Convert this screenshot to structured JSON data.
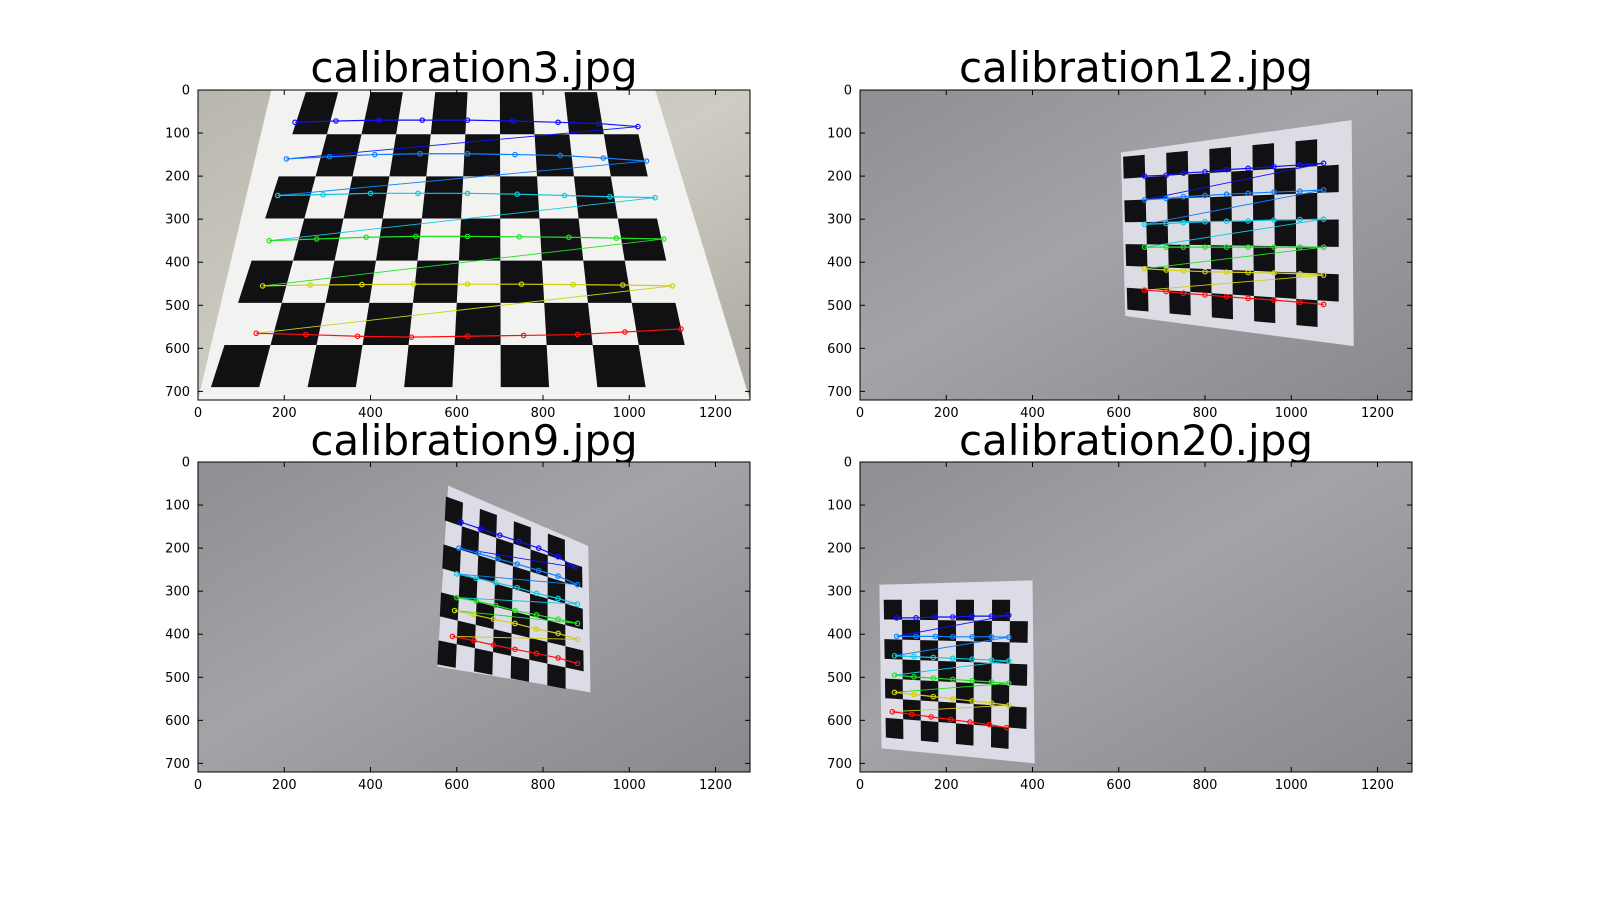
{
  "chart_data": [
    {
      "type": "image",
      "title": "calibration3.jpg",
      "background": "wall-cream",
      "xlim": [
        0,
        1280
      ],
      "ylim": [
        720,
        0
      ],
      "xticks": [
        0,
        200,
        400,
        600,
        800,
        1000,
        1200
      ],
      "yticks": [
        0,
        100,
        200,
        300,
        400,
        500,
        600,
        700
      ],
      "board": {
        "tl": [
          250,
          5
        ],
        "tr": [
          1000,
          5
        ],
        "br": [
          1150,
          690
        ],
        "bl": [
          30,
          690
        ],
        "cols": 10,
        "rows": 7,
        "paper": "#f2f2f0",
        "paper_corners": [
          [
            170,
            0
          ],
          [
            1060,
            0
          ],
          [
            1280,
            720
          ],
          [
            0,
            720
          ]
        ]
      },
      "corners": [
        {
          "color": "#1010ff",
          "points": [
            [
              225,
              75
            ],
            [
              320,
              72
            ],
            [
              420,
              70
            ],
            [
              520,
              70
            ],
            [
              625,
              70
            ],
            [
              730,
              72
            ],
            [
              835,
              75
            ],
            [
              930,
              78
            ],
            [
              1020,
              85
            ]
          ]
        },
        {
          "color": "#1080ff",
          "points": [
            [
              205,
              160
            ],
            [
              305,
              155
            ],
            [
              410,
              150
            ],
            [
              515,
              148
            ],
            [
              625,
              148
            ],
            [
              735,
              150
            ],
            [
              840,
              152
            ],
            [
              940,
              158
            ],
            [
              1040,
              165
            ]
          ]
        },
        {
          "color": "#10c8e0",
          "points": [
            [
              185,
              245
            ],
            [
              290,
              243
            ],
            [
              400,
              240
            ],
            [
              510,
              240
            ],
            [
              625,
              240
            ],
            [
              740,
              242
            ],
            [
              850,
              245
            ],
            [
              955,
              248
            ],
            [
              1060,
              250
            ]
          ]
        },
        {
          "color": "#20e020",
          "points": [
            [
              165,
              350
            ],
            [
              275,
              346
            ],
            [
              390,
              342
            ],
            [
              505,
              340
            ],
            [
              625,
              340
            ],
            [
              745,
              341
            ],
            [
              860,
              342
            ],
            [
              970,
              344
            ],
            [
              1080,
              346
            ]
          ]
        },
        {
          "color": "#d0d010",
          "points": [
            [
              150,
              455
            ],
            [
              260,
              453
            ],
            [
              380,
              452
            ],
            [
              500,
              451
            ],
            [
              625,
              451
            ],
            [
              750,
              451
            ],
            [
              870,
              452
            ],
            [
              985,
              453
            ],
            [
              1100,
              455
            ]
          ]
        },
        {
          "color": "#ff1010",
          "points": [
            [
              135,
              565
            ],
            [
              250,
              568
            ],
            [
              370,
              572
            ],
            [
              495,
              574
            ],
            [
              625,
              572
            ],
            [
              755,
              570
            ],
            [
              880,
              568
            ],
            [
              990,
              562
            ],
            [
              1120,
              555
            ]
          ]
        }
      ]
    },
    {
      "type": "image",
      "title": "calibration12.jpg",
      "background": "wall-grey",
      "xlim": [
        0,
        1280
      ],
      "ylim": [
        720,
        0
      ],
      "xticks": [
        0,
        200,
        400,
        600,
        800,
        1000,
        1200
      ],
      "yticks": [
        0,
        100,
        200,
        300,
        400,
        500,
        600,
        700
      ],
      "board": {
        "tl": [
          610,
          155
        ],
        "tr": [
          1110,
          110
        ],
        "br": [
          1110,
          555
        ],
        "bl": [
          620,
          510
        ],
        "cols": 10,
        "rows": 7,
        "paper": "#dcdce4",
        "paper_corners": [
          [
            605,
            145
          ],
          [
            1140,
            70
          ],
          [
            1145,
            595
          ],
          [
            615,
            525
          ]
        ]
      },
      "corners": [
        {
          "color": "#1010ff",
          "points": [
            [
              660,
              200
            ],
            [
              710,
              198
            ],
            [
              750,
              193
            ],
            [
              800,
              190
            ],
            [
              850,
              185
            ],
            [
              900,
              182
            ],
            [
              960,
              178
            ],
            [
              1020,
              174
            ],
            [
              1075,
              170
            ]
          ]
        },
        {
          "color": "#1080ff",
          "points": [
            [
              660,
              255
            ],
            [
              710,
              252
            ],
            [
              750,
              248
            ],
            [
              800,
              245
            ],
            [
              850,
              242
            ],
            [
              900,
              240
            ],
            [
              960,
              237
            ],
            [
              1020,
              235
            ],
            [
              1075,
              232
            ]
          ]
        },
        {
          "color": "#10c8e0",
          "points": [
            [
              660,
              312
            ],
            [
              710,
              310
            ],
            [
              750,
              308
            ],
            [
              800,
              306
            ],
            [
              850,
              305
            ],
            [
              900,
              304
            ],
            [
              960,
              302
            ],
            [
              1020,
              301
            ],
            [
              1075,
              300
            ]
          ]
        },
        {
          "color": "#20e020",
          "points": [
            [
              660,
              365
            ],
            [
              710,
              365
            ],
            [
              750,
              365
            ],
            [
              800,
              365
            ],
            [
              850,
              365
            ],
            [
              900,
              365
            ],
            [
              960,
              365
            ],
            [
              1020,
              365
            ],
            [
              1075,
              365
            ]
          ]
        },
        {
          "color": "#d0d010",
          "points": [
            [
              660,
              415
            ],
            [
              710,
              418
            ],
            [
              750,
              420
            ],
            [
              800,
              422
            ],
            [
              850,
              423
            ],
            [
              900,
              424
            ],
            [
              960,
              425
            ],
            [
              1020,
              427
            ],
            [
              1075,
              430
            ]
          ]
        },
        {
          "color": "#ff1010",
          "points": [
            [
              660,
              465
            ],
            [
              710,
              468
            ],
            [
              750,
              472
            ],
            [
              800,
              476
            ],
            [
              850,
              480
            ],
            [
              900,
              484
            ],
            [
              960,
              488
            ],
            [
              1020,
              493
            ],
            [
              1075,
              498
            ]
          ]
        }
      ]
    },
    {
      "type": "image",
      "title": "calibration9.jpg",
      "background": "wall-grey",
      "xlim": [
        0,
        1280
      ],
      "ylim": [
        720,
        0
      ],
      "xticks": [
        0,
        200,
        400,
        600,
        800,
        1000,
        1200
      ],
      "yticks": [
        0,
        100,
        200,
        300,
        400,
        500,
        600,
        700
      ],
      "board": {
        "tl": [
          575,
          80
        ],
        "tr": [
          890,
          195
        ],
        "br": [
          895,
          535
        ],
        "bl": [
          555,
          470
        ],
        "cols": 8,
        "rows": 7,
        "paper": "#dcdce6",
        "paper_corners": [
          [
            580,
            55
          ],
          [
            905,
            195
          ],
          [
            910,
            535
          ],
          [
            555,
            475
          ]
        ]
      },
      "corners": [
        {
          "color": "#1010ff",
          "points": [
            [
              610,
              140
            ],
            [
              655,
              155
            ],
            [
              700,
              170
            ],
            [
              745,
              185
            ],
            [
              790,
              200
            ],
            [
              835,
              220
            ],
            [
              875,
              245
            ]
          ]
        },
        {
          "color": "#1080ff",
          "points": [
            [
              605,
              200
            ],
            [
              650,
              212
            ],
            [
              695,
              225
            ],
            [
              740,
              237
            ],
            [
              790,
              252
            ],
            [
              835,
              265
            ],
            [
              880,
              285
            ]
          ]
        },
        {
          "color": "#10c8e0",
          "points": [
            [
              600,
              260
            ],
            [
              645,
              270
            ],
            [
              690,
              280
            ],
            [
              740,
              292
            ],
            [
              785,
              305
            ],
            [
              835,
              317
            ],
            [
              880,
              330
            ]
          ]
        },
        {
          "color": "#20e020",
          "points": [
            [
              600,
              315
            ],
            [
              645,
              323
            ],
            [
              690,
              333
            ],
            [
              735,
              345
            ],
            [
              785,
              355
            ],
            [
              835,
              365
            ],
            [
              880,
              375
            ]
          ]
        },
        {
          "color": "#d0d010",
          "points": [
            [
              595,
              345
            ],
            [
              640,
              355
            ],
            [
              685,
              365
            ],
            [
              735,
              375
            ],
            [
              785,
              388
            ],
            [
              835,
              398
            ],
            [
              880,
              412
            ]
          ]
        },
        {
          "color": "#ff1010",
          "points": [
            [
              590,
              405
            ],
            [
              640,
              415
            ],
            [
              685,
              425
            ],
            [
              735,
              435
            ],
            [
              785,
              445
            ],
            [
              835,
              455
            ],
            [
              880,
              468
            ]
          ]
        }
      ]
    },
    {
      "type": "image",
      "title": "calibration20.jpg",
      "background": "wall-grey",
      "xlim": [
        0,
        1280
      ],
      "ylim": [
        720,
        0
      ],
      "xticks": [
        0,
        200,
        400,
        600,
        800,
        1000,
        1200
      ],
      "yticks": [
        0,
        100,
        200,
        300,
        400,
        500,
        600,
        700
      ],
      "board": {
        "tl": [
          55,
          320
        ],
        "tr": [
          390,
          320
        ],
        "br": [
          385,
          670
        ],
        "bl": [
          60,
          640
        ],
        "cols": 8,
        "rows": 7,
        "paper": "#dcdce6",
        "paper_corners": [
          [
            45,
            285
          ],
          [
            400,
            275
          ],
          [
            405,
            700
          ],
          [
            50,
            665
          ]
        ]
      },
      "corners": [
        {
          "color": "#1010ff",
          "points": [
            [
              85,
              362
            ],
            [
              130,
              362
            ],
            [
              175,
              360
            ],
            [
              215,
              360
            ],
            [
              260,
              358
            ],
            [
              305,
              358
            ],
            [
              345,
              356
            ]
          ]
        },
        {
          "color": "#1080ff",
          "points": [
            [
              85,
              405
            ],
            [
              130,
              405
            ],
            [
              175,
              405
            ],
            [
              215,
              406
            ],
            [
              260,
              406
            ],
            [
              305,
              406
            ],
            [
              345,
              407
            ]
          ]
        },
        {
          "color": "#10c8e0",
          "points": [
            [
              80,
              450
            ],
            [
              125,
              452
            ],
            [
              170,
              454
            ],
            [
              215,
              456
            ],
            [
              260,
              458
            ],
            [
              305,
              460
            ],
            [
              345,
              462
            ]
          ]
        },
        {
          "color": "#20e020",
          "points": [
            [
              80,
              495
            ],
            [
              125,
              499
            ],
            [
              170,
              502
            ],
            [
              215,
              505
            ],
            [
              260,
              508
            ],
            [
              305,
              511
            ],
            [
              345,
              514
            ]
          ]
        },
        {
          "color": "#d0d010",
          "points": [
            [
              80,
              535
            ],
            [
              125,
              540
            ],
            [
              170,
              545
            ],
            [
              215,
              550
            ],
            [
              260,
              555
            ],
            [
              305,
              560
            ],
            [
              345,
              565
            ]
          ]
        },
        {
          "color": "#ff1010",
          "points": [
            [
              75,
              580
            ],
            [
              120,
              586
            ],
            [
              165,
              592
            ],
            [
              210,
              598
            ],
            [
              255,
              604
            ],
            [
              300,
              610
            ],
            [
              340,
              617
            ]
          ]
        }
      ]
    }
  ]
}
